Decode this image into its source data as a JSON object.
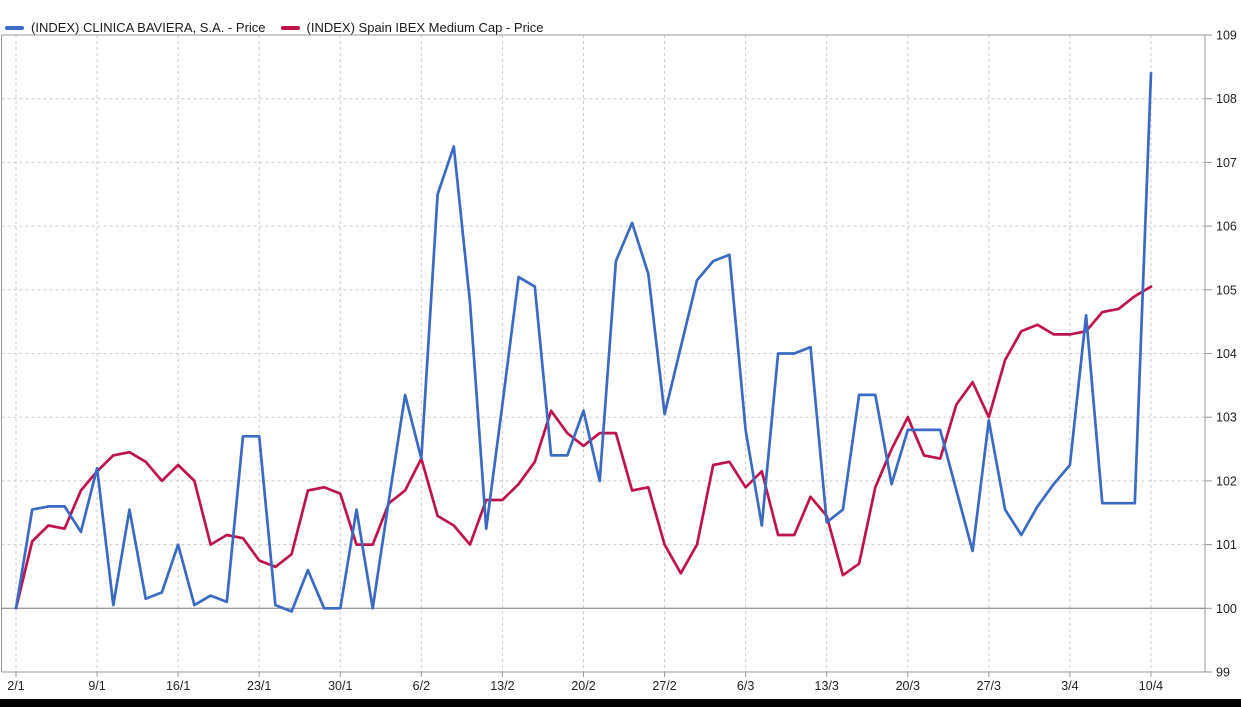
{
  "legend": {
    "series1_label": "(INDEX) CLINICA BAVIERA, S.A. - Price",
    "series2_label": "(INDEX) Spain IBEX Medium Cap - Price"
  },
  "colors": {
    "series1": "#3a6ac4",
    "series2": "#bf1349",
    "grid": "#cccccc",
    "border": "#999999",
    "baseline": "#777777",
    "tick_text": "#222222"
  },
  "chart_data": {
    "type": "line",
    "title": "",
    "xlabel": "",
    "ylabel": "",
    "ylim": [
      99,
      109
    ],
    "y_ticks": [
      99,
      100,
      101,
      102,
      103,
      104,
      105,
      106,
      107,
      108,
      109
    ],
    "baseline_value": 100,
    "grid": true,
    "legend_position": "top-left",
    "x_tick_labels": [
      "2/1",
      "9/1",
      "16/1",
      "23/1",
      "30/1",
      "6/2",
      "13/2",
      "20/2",
      "27/2",
      "6/3",
      "13/3",
      "20/3",
      "27/3",
      "3/4",
      "10/4"
    ],
    "points_per_week": 5,
    "series": [
      {
        "name": "(INDEX) CLINICA BAVIERA, S.A. - Price",
        "color": "#3a6ac4",
        "values": [
          100.0,
          101.55,
          101.6,
          101.6,
          101.2,
          102.2,
          100.05,
          101.55,
          100.15,
          100.25,
          101.0,
          100.05,
          100.2,
          100.1,
          102.7,
          102.7,
          100.05,
          99.95,
          100.6,
          100.0,
          100.0,
          101.55,
          100.0,
          101.7,
          103.35,
          102.35,
          106.5,
          107.25,
          104.8,
          101.25,
          103.2,
          105.2,
          105.05,
          102.4,
          102.4,
          103.1,
          102.0,
          105.45,
          106.05,
          105.25,
          103.05,
          104.1,
          105.15,
          105.45,
          105.55,
          102.8,
          101.3,
          104.0,
          104.0,
          104.1,
          101.35,
          101.55,
          103.35,
          103.35,
          101.95,
          102.8,
          102.8,
          102.8,
          101.85,
          100.9,
          102.95,
          101.55,
          101.15,
          101.6,
          101.95,
          102.25,
          104.6,
          101.65,
          101.65,
          101.65,
          108.4
        ]
      },
      {
        "name": "(INDEX) Spain IBEX Medium Cap - Price",
        "color": "#bf1349",
        "values": [
          100.0,
          101.05,
          101.3,
          101.25,
          101.85,
          102.15,
          102.4,
          102.45,
          102.3,
          102.0,
          102.25,
          102.0,
          101.0,
          101.15,
          101.1,
          100.75,
          100.65,
          100.85,
          101.85,
          101.9,
          101.8,
          101.0,
          101.0,
          101.65,
          101.85,
          102.35,
          101.45,
          101.3,
          101.0,
          101.7,
          101.7,
          101.95,
          102.3,
          103.1,
          102.75,
          102.55,
          102.75,
          102.75,
          101.85,
          101.9,
          101.0,
          100.55,
          101.0,
          102.25,
          102.3,
          101.9,
          102.15,
          101.15,
          101.15,
          101.75,
          101.45,
          100.52,
          100.7,
          101.9,
          102.5,
          103.0,
          102.4,
          102.35,
          103.2,
          103.55,
          103.0,
          103.9,
          104.35,
          104.45,
          104.3,
          104.3,
          104.35,
          104.65,
          104.7,
          104.9,
          105.05
        ]
      }
    ]
  }
}
